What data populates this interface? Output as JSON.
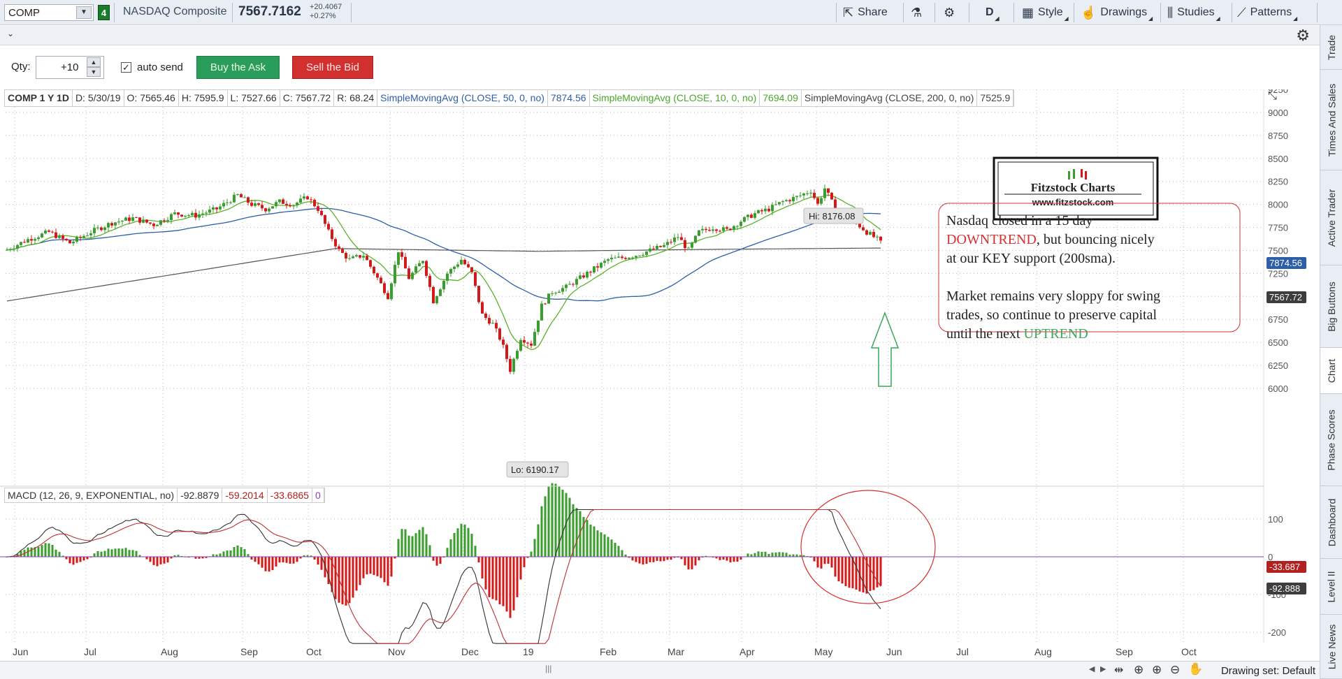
{
  "toolbar": {
    "symbol": "COMP",
    "link_badge": "4",
    "description": "NASDAQ Composite",
    "last_price": "7567.7162",
    "change_abs": "+20.4067",
    "change_pct": "+0.27%",
    "share_label": "Share",
    "timeframe_label": "D",
    "style_label": "Style",
    "drawings_label": "Drawings",
    "studies_label": "Studies",
    "patterns_label": "Patterns"
  },
  "order": {
    "qty_label": "Qty:",
    "qty_value": "+10",
    "auto_send_label": "auto send",
    "buy_label": "Buy the Ask",
    "sell_label": "Sell the Bid"
  },
  "right_tabs": [
    "Trade",
    "Times And Sales",
    "Active Trader",
    "Big Buttons",
    "Chart",
    "Phase Scores",
    "Dashboard",
    "Level II",
    "Live News"
  ],
  "legend": {
    "symbol": "COMP 1 Y 1D",
    "date": "D: 5/30/19",
    "open": "O: 7565.46",
    "high": "H: 7595.9",
    "low": "L: 7527.66",
    "close": "C: 7567.72",
    "range": "R: 68.24",
    "sma50_label": "SimpleMovingAvg (CLOSE, 50, 0, no)",
    "sma50_value": "7874.56",
    "sma10_label": "SimpleMovingAvg (CLOSE, 10, 0, no)",
    "sma10_value": "7694.09",
    "sma200_label": "SimpleMovingAvg (CLOSE, 200, 0, no)",
    "sma200_value": "7525.9"
  },
  "macd_legend": {
    "label": "MACD (12, 26, 9, EXPONENTIAL, no)",
    "value": "-92.8879",
    "avg": "-59.2014",
    "diff": "-33.6865",
    "zero": "0"
  },
  "callouts": {
    "hi": "Hi: 8176.08",
    "lo": "Lo: 6190.17"
  },
  "logo": {
    "title": "Fitzstock Charts",
    "url": "www.fitzstock.com"
  },
  "annotation": {
    "line1": "Nasdaq closed in a 15 day",
    "down": "DOWNTREND",
    "line2_rest": ", but bouncing nicely",
    "line3": "at our KEY support (200sma).",
    "line4": "Market remains very sloppy for swing",
    "line5": "trades, so continue to preserve capital",
    "line6": "until the next ",
    "up": "UPTREND"
  },
  "price_badges": {
    "sma50": "7874.56",
    "close": "7567.72",
    "macd_diff": "-33.687",
    "macd_value": "-92.888"
  },
  "price_axis": [
    "9250",
    "9000",
    "8750",
    "8500",
    "8250",
    "8000",
    "7750",
    "7500",
    "7250",
    "7000",
    "6750",
    "6500",
    "6250",
    "6000"
  ],
  "macd_axis": [
    "100",
    "0",
    "-100",
    "-200"
  ],
  "time_axis": [
    "Jun",
    "Jul",
    "Aug",
    "Sep",
    "Oct",
    "Nov",
    "Dec",
    "19",
    "Feb",
    "Mar",
    "Apr",
    "May",
    "Jun",
    "Jul",
    "Aug",
    "Sep",
    "Oct"
  ],
  "bottom": {
    "drawing_set": "Drawing set: Default"
  },
  "colors": {
    "up": "#3a9e2e",
    "down": "#d11a1a",
    "sma50": "#2d5fa8",
    "sma10": "#5ab32a",
    "sma200": "#555555",
    "annotation_red": "#d63030",
    "annotation_green": "#3aa85a"
  },
  "chart_data": {
    "type": "candlestick",
    "x": [
      "2018-06",
      "2018-07",
      "2018-08",
      "2018-09",
      "2018-10",
      "2018-11",
      "2018-12",
      "2019-01",
      "2019-02",
      "2019-03",
      "2019-04",
      "2019-05"
    ],
    "close_approx": [
      7600,
      7750,
      7900,
      8050,
      7450,
      7300,
      6600,
      7000,
      7400,
      7700,
      8100,
      7550
    ],
    "ylim": [
      6000,
      9250
    ],
    "macd_ylim": [
      -200,
      130
    ]
  }
}
